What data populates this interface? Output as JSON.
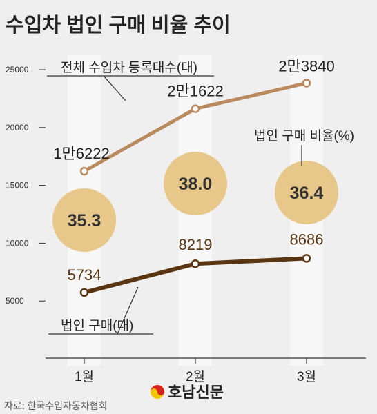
{
  "chart_data": {
    "type": "line",
    "title": "수입차 법인 구매 비율 추이",
    "categories": [
      "1월",
      "2월",
      "3월"
    ],
    "ylim": [
      0,
      25000
    ],
    "yticks": [
      5000,
      10000,
      15000,
      20000,
      25000
    ],
    "grid": false,
    "series": [
      {
        "name": "전체 수입차 등록대수(대)",
        "values": [
          16222,
          21622,
          23840
        ],
        "value_labels": [
          "1만6222",
          "2만1622",
          "2만3840"
        ],
        "color": "#b98a5e"
      },
      {
        "name": "법인 구매(대)",
        "values": [
          5734,
          8219,
          8686
        ],
        "value_labels": [
          "5734",
          "8219",
          "8686"
        ],
        "color": "#5a3512"
      }
    ],
    "ratio": {
      "label": "법인 구매 비율(%)",
      "values": [
        35.3,
        38.0,
        36.4
      ],
      "value_labels": [
        "35.3",
        "38.0",
        "36.4"
      ],
      "color": "#e8c78a"
    }
  },
  "source": "자료: 한국수입자동차협회",
  "logo": {
    "name": "호남신문",
    "color": "#222222",
    "accent": "#d8231f"
  }
}
